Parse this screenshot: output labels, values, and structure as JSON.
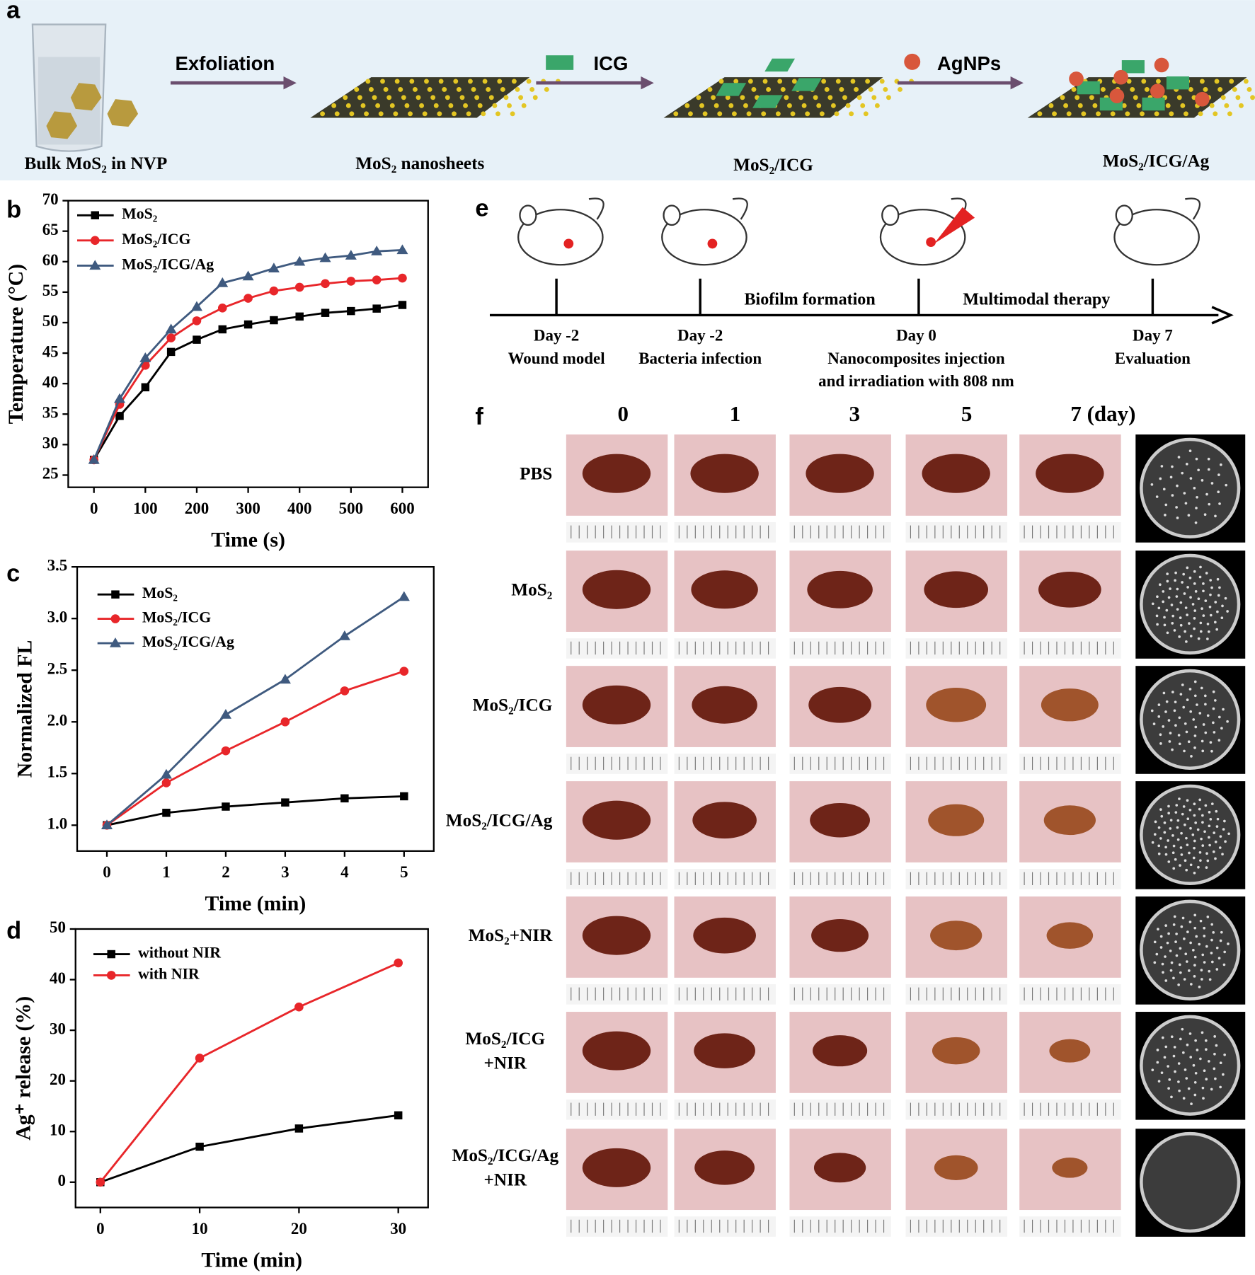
{
  "panel_labels": [
    "a",
    "b",
    "c",
    "d",
    "e",
    "f"
  ],
  "panel_a": {
    "steps": [
      "Bulk MoS₂ in NVP",
      "MoS₂ nanosheets",
      "MoS₂/ICG",
      "MoS₂/ICG/Ag"
    ],
    "arrows": [
      "Exfoliation",
      "ICG",
      "AgNPs"
    ]
  },
  "chart_data": [
    {
      "type": "line",
      "xlabel": "Time (s)",
      "ylabel": "Temperature (°C)",
      "x": [
        0,
        50,
        100,
        150,
        200,
        250,
        300,
        350,
        400,
        450,
        500,
        550,
        600
      ],
      "xlim": [
        -50,
        650
      ],
      "ylim": [
        23,
        70
      ],
      "xticks": [
        0,
        100,
        200,
        300,
        400,
        500,
        600
      ],
      "yticks": [
        25,
        30,
        35,
        40,
        45,
        50,
        55,
        60,
        65,
        70
      ],
      "legend": "upper left",
      "series": [
        {
          "name": "MoS₂",
          "color": "#000000",
          "marker": "square",
          "values": [
            27.5,
            34.7,
            39.4,
            45.2,
            47.2,
            48.9,
            49.7,
            50.4,
            51.0,
            51.6,
            51.9,
            52.3,
            52.9
          ]
        },
        {
          "name": "MoS₂/ICG",
          "color": "#e8262a",
          "marker": "circle",
          "values": [
            27.5,
            36.6,
            43.0,
            47.5,
            50.3,
            52.4,
            54.0,
            55.2,
            55.8,
            56.4,
            56.8,
            57.0,
            57.3
          ]
        },
        {
          "name": "MoS₂/ICG/Ag",
          "color": "#3f5a7f",
          "marker": "triangle",
          "values": [
            27.5,
            37.5,
            44.2,
            48.9,
            52.6,
            56.5,
            57.6,
            58.9,
            60.0,
            60.6,
            61.0,
            61.7,
            61.9
          ]
        }
      ]
    },
    {
      "type": "line",
      "xlabel": "Time (min)",
      "ylabel": "Normalized FL",
      "x": [
        0,
        1,
        2,
        3,
        4,
        5
      ],
      "xlim": [
        -0.5,
        5.5
      ],
      "ylim": [
        0.75,
        3.5
      ],
      "xticks": [
        0,
        1,
        2,
        3,
        4,
        5
      ],
      "yticks": [
        {
          "value": 1,
          "label": "1.0"
        },
        1.5,
        {
          "value": 2,
          "label": "2.0"
        },
        2.5,
        {
          "value": 3,
          "label": "3.0"
        },
        3.5
      ],
      "legend": "upper left",
      "series": [
        {
          "name": "MoS₂",
          "color": "#000000",
          "marker": "square",
          "values": [
            1.0,
            1.12,
            1.18,
            1.22,
            1.26,
            1.28
          ]
        },
        {
          "name": "MoS₂/ICG",
          "color": "#e8262a",
          "marker": "circle",
          "values": [
            1.0,
            1.41,
            1.72,
            2.0,
            2.3,
            2.49
          ]
        },
        {
          "name": "MoS₂/ICG/Ag",
          "color": "#3f5a7f",
          "marker": "triangle",
          "values": [
            1.0,
            1.49,
            2.07,
            2.41,
            2.83,
            3.21
          ]
        }
      ]
    },
    {
      "type": "line",
      "xlabel": "Time  (min)",
      "ylabel": "Ag⁺ release  (%)",
      "x": [
        0,
        10,
        20,
        30
      ],
      "xlim": [
        -2.5,
        33
      ],
      "ylim": [
        -5,
        50
      ],
      "xticks": [
        0,
        10,
        20,
        30
      ],
      "yticks": [
        0,
        10,
        20,
        30,
        40,
        50
      ],
      "legend": "upper left",
      "series": [
        {
          "name": "without NIR",
          "color": "#000000",
          "marker": "square",
          "values": [
            0,
            7,
            10.6,
            13.2
          ]
        },
        {
          "name": "with NIR",
          "color": "#e8262a",
          "marker": "circle",
          "values": [
            0,
            24.5,
            34.6,
            43.3
          ]
        }
      ]
    }
  ],
  "panel_e": {
    "phases": [
      "Biofilm formation",
      "Multimodal therapy"
    ],
    "events": [
      [
        "Day -2",
        "Wound model"
      ],
      [
        "Day -2",
        "Bacteria infection"
      ],
      [
        "Day 0",
        "Nanocomposites injection",
        "and irradiation with 808 nm"
      ],
      [
        "Day 7",
        "Evaluation"
      ]
    ]
  },
  "panel_f": {
    "days": [
      "0",
      "1",
      "3",
      "5",
      "7 (day)"
    ],
    "groups": [
      [
        "PBS"
      ],
      [
        "MoS₂"
      ],
      [
        "MoS₂/ICG"
      ],
      [
        "MoS₂/ICG/Ag"
      ],
      [
        "MoS₂+NIR"
      ],
      [
        "MoS₂/ICG",
        "+NIR"
      ],
      [
        "MoS₂/ICG/Ag",
        "+NIR"
      ]
    ]
  }
}
